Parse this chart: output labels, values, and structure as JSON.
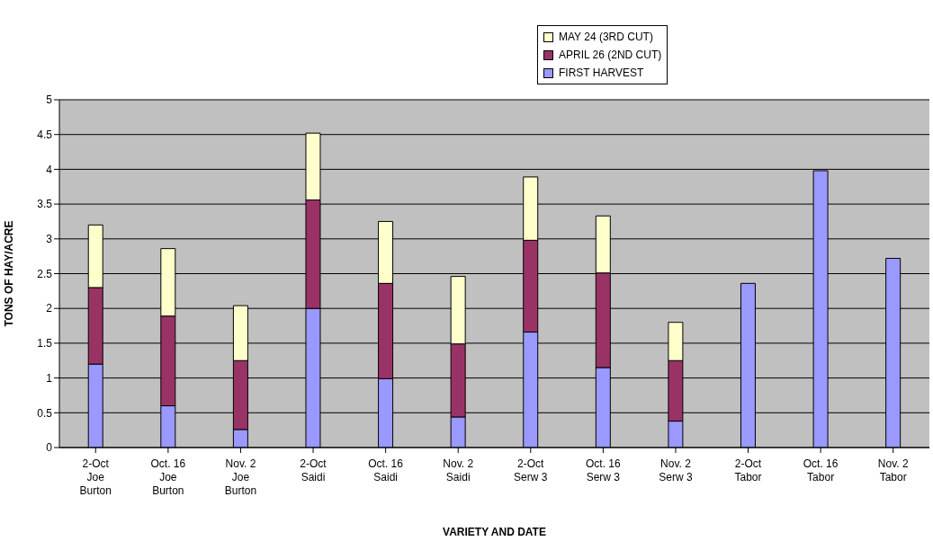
{
  "chart_data": {
    "type": "bar",
    "stacked": true,
    "xlabel": "VARIETY AND DATE",
    "ylabel": "TONS OF HAY/ACRE",
    "categories": [
      "2-Oct\nJoe\nBurton",
      "Oct. 16\nJoe\nBurton",
      "Nov. 2\nJoe\nBurton",
      "2-Oct\nSaidi",
      "Oct. 16\nSaidi",
      "Nov. 2\nSaidi",
      "2-Oct\nSerw 3",
      "Oct. 16\nSerw 3",
      "Nov. 2\nSerw 3",
      "2-Oct\nTabor",
      "Oct. 16\nTabor",
      "Nov. 2\nTabor"
    ],
    "series": [
      {
        "name": "FIRST HARVEST",
        "color": "#9999ff",
        "values": [
          1.2,
          0.6,
          0.26,
          2.0,
          0.99,
          0.44,
          1.66,
          1.15,
          0.38,
          2.36,
          3.98,
          2.72
        ]
      },
      {
        "name": "APRIL 26 (2ND CUT)",
        "color": "#993366",
        "values": [
          1.1,
          1.29,
          0.99,
          1.56,
          1.37,
          1.05,
          1.32,
          1.36,
          0.87,
          null,
          null,
          null
        ]
      },
      {
        "name": "MAY 24 (3RD CUT)",
        "color": "#ffffcc",
        "values": [
          0.9,
          0.97,
          0.79,
          0.96,
          0.89,
          0.97,
          0.91,
          0.82,
          0.55,
          null,
          null,
          null
        ]
      }
    ],
    "ylim": [
      0,
      5
    ],
    "yticks": [
      0,
      0.5,
      1,
      1.5,
      2,
      2.5,
      3,
      3.5,
      4,
      4.5,
      5
    ],
    "grid": "y",
    "legend": "top"
  }
}
